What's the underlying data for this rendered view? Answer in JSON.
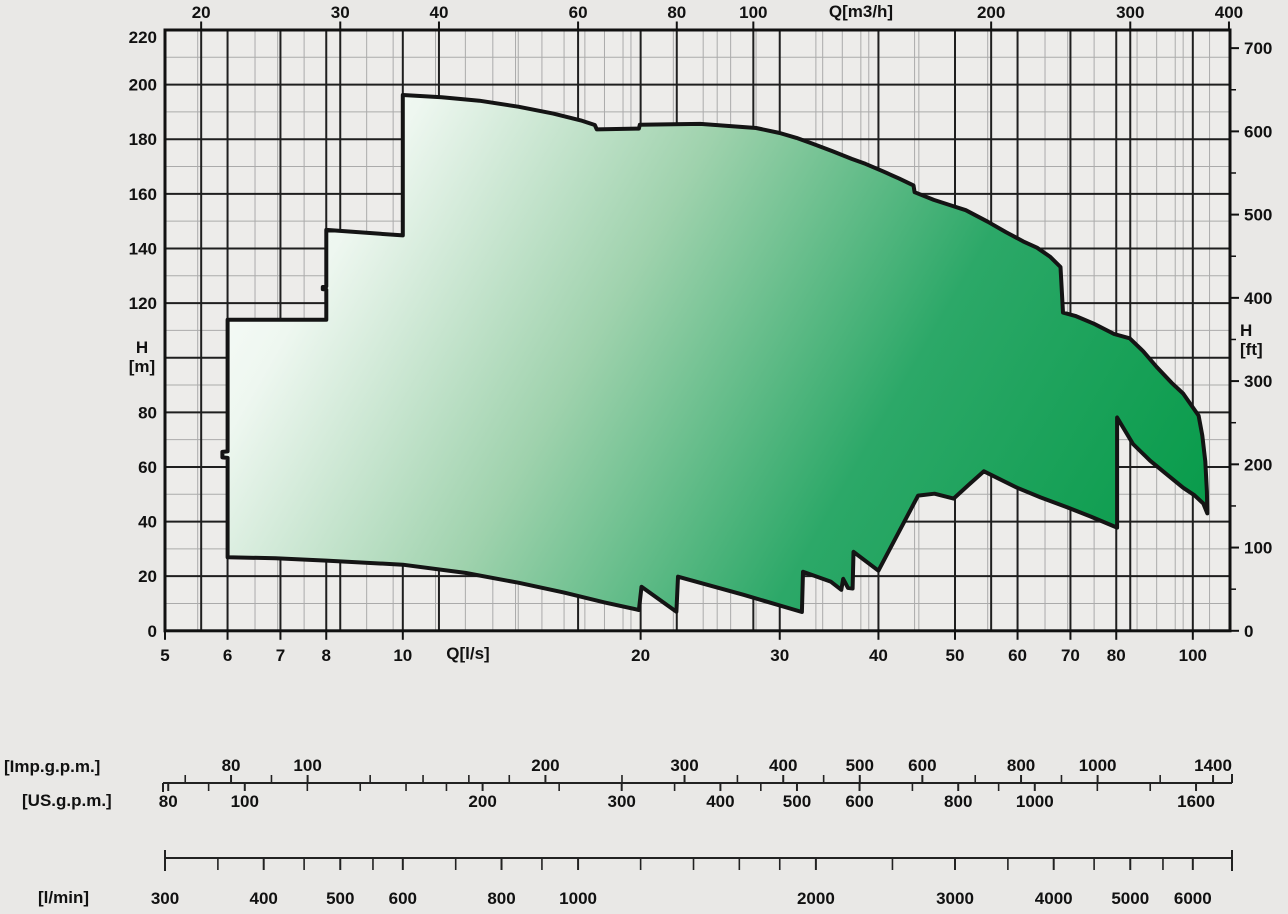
{
  "chart_data": {
    "type": "area",
    "x_scale": "log",
    "x_range_ls": [
      5,
      111.11
    ],
    "y_range_m": [
      0,
      220
    ],
    "top_axis": {
      "label": "Q[m3/h]",
      "ticks": [
        20,
        30,
        40,
        60,
        80,
        100,
        200,
        300,
        400
      ],
      "ls_per_unit": 0.27778
    },
    "bottom_axis": {
      "label": "Q[l/s]",
      "ticks": [
        5,
        6,
        7,
        8,
        10,
        20,
        30,
        40,
        50,
        60,
        70,
        80,
        100
      ],
      "ls_per_unit": 1
    },
    "left_axis": {
      "label": "H",
      "unit": "[m]",
      "ticks": [
        0,
        20,
        40,
        60,
        80,
        120,
        140,
        160,
        180,
        200,
        220
      ]
    },
    "right_axis": {
      "label": "H",
      "unit": "[ft]",
      "ticks": [
        0,
        100,
        200,
        300,
        400,
        500,
        600,
        700
      ],
      "minor_ticks": [
        50,
        150,
        250,
        350,
        450,
        550,
        650
      ],
      "m_per_ft": 0.3048
    },
    "grid": {
      "v_major_ls": [
        6,
        7,
        8,
        10,
        20,
        30,
        40,
        50,
        60,
        70,
        80,
        100,
        5.556,
        8.333,
        11.111,
        16.667,
        22.222,
        27.778,
        55.556,
        83.333
      ],
      "v_minor_ls": [
        5.5,
        6.5,
        7.5,
        9,
        11,
        12,
        13,
        14,
        15,
        16,
        17,
        18,
        19,
        22,
        24,
        26,
        28,
        34,
        36,
        38,
        45,
        55,
        65,
        75,
        85,
        90,
        95,
        105,
        6.944,
        9.722,
        13.889,
        19.444,
        25,
        33.333,
        38.889,
        44.444,
        69.444,
        97.222
      ],
      "h_major_m": [
        20,
        40,
        60,
        80,
        100,
        120,
        140,
        160,
        180,
        200
      ],
      "h_minor_m": [
        10,
        30,
        50,
        70,
        90,
        110,
        130,
        150,
        170,
        190,
        210
      ]
    },
    "rulers": [
      {
        "name": "imp-gpm",
        "bracket_label": "[Imp.g.p.m.]",
        "line": "A",
        "tick_side": "up",
        "label_side": "above",
        "ls_per_unit": 0.0757682,
        "labeled_ticks": [
          80,
          100,
          200,
          300,
          400,
          500,
          600,
          800,
          1000,
          1400
        ],
        "minor_ticks": [
          70,
          90,
          120,
          140,
          160,
          180,
          250,
          350,
          450,
          700,
          900,
          1200
        ]
      },
      {
        "name": "us-gpm",
        "bracket_label": "[US.g.p.m.]",
        "line": "A",
        "tick_side": "down",
        "label_side": "below",
        "ls_per_unit": 0.0630902,
        "labeled_ticks": [
          80,
          100,
          200,
          300,
          400,
          500,
          600,
          800,
          1000,
          1600
        ],
        "minor_ticks": [
          90,
          120,
          140,
          160,
          180,
          250,
          350,
          450,
          700,
          900,
          1200,
          1400
        ]
      },
      {
        "name": "l-min",
        "bracket_label": "[l/min]",
        "line": "B",
        "tick_side": "down",
        "label_side": "below",
        "ls_per_unit": 0.0166667,
        "labeled_ticks": [
          300,
          400,
          500,
          600,
          800,
          1000,
          2000,
          3000,
          4000,
          5000,
          6000
        ],
        "minor_ticks": [
          350,
          450,
          550,
          700,
          900,
          1200,
          1400,
          1600,
          1800,
          2500,
          3500,
          4500,
          5500
        ]
      }
    ],
    "envelope_points_q_h": [
      [
        6.0,
        26.9
      ],
      [
        6.0,
        63.3
      ],
      [
        5.91,
        63.5
      ],
      [
        5.91,
        65.5
      ],
      [
        6.0,
        65.7
      ],
      [
        6.0,
        113.9
      ],
      [
        8.0,
        113.9
      ],
      [
        8.0,
        124.9
      ],
      [
        7.92,
        125.1
      ],
      [
        7.92,
        125.9
      ],
      [
        8.0,
        126.1
      ],
      [
        8.0,
        146.8
      ],
      [
        10.0,
        144.8
      ],
      [
        10.0,
        196.2
      ],
      [
        11.2,
        195.4
      ],
      [
        12.5,
        194.1
      ],
      [
        14.0,
        191.9
      ],
      [
        15.5,
        189.4
      ],
      [
        16.8,
        186.9
      ],
      [
        17.5,
        185.2
      ],
      [
        17.6,
        183.6
      ],
      [
        19.9,
        183.9
      ],
      [
        19.95,
        185.3
      ],
      [
        22.0,
        185.5
      ],
      [
        23.8,
        185.6
      ],
      [
        26.0,
        184.8
      ],
      [
        28.0,
        184.1
      ],
      [
        30.0,
        182.3
      ],
      [
        31.5,
        180.5
      ],
      [
        33.0,
        178.4
      ],
      [
        35.0,
        175.6
      ],
      [
        37.0,
        172.8
      ],
      [
        38.5,
        171.0
      ],
      [
        40.5,
        168.3
      ],
      [
        42.5,
        165.6
      ],
      [
        44.3,
        163.1
      ],
      [
        44.45,
        160.6
      ],
      [
        47.0,
        157.8
      ],
      [
        49.5,
        155.7
      ],
      [
        51.6,
        154.0
      ],
      [
        55.0,
        149.8
      ],
      [
        58.0,
        146.0
      ],
      [
        61.0,
        142.6
      ],
      [
        63.5,
        140.3
      ],
      [
        66.0,
        136.9
      ],
      [
        68.0,
        133.2
      ],
      [
        68.5,
        116.5
      ],
      [
        71.0,
        115.3
      ],
      [
        75.0,
        112.4
      ],
      [
        79.5,
        108.7
      ],
      [
        83.2,
        107.1
      ],
      [
        86.5,
        102.4
      ],
      [
        90.0,
        96.6
      ],
      [
        94.0,
        90.8
      ],
      [
        97.2,
        86.9
      ],
      [
        101.7,
        78.8
      ],
      [
        102.8,
        71.5
      ],
      [
        103.7,
        62.0
      ],
      [
        104.2,
        51.0
      ],
      [
        104.3,
        43.0
      ],
      [
        103.1,
        46.6
      ],
      [
        100.5,
        49.6
      ],
      [
        97.2,
        52.4
      ],
      [
        92.5,
        57.5
      ],
      [
        88.3,
        62.3
      ],
      [
        84.0,
        68.4
      ],
      [
        80.2,
        78.1
      ],
      [
        80.2,
        37.8
      ],
      [
        74.3,
        41.8
      ],
      [
        69.5,
        45.1
      ],
      [
        64.2,
        48.8
      ],
      [
        59.9,
        52.4
      ],
      [
        54.4,
        58.4
      ],
      [
        52.0,
        53.4
      ],
      [
        49.8,
        48.4
      ],
      [
        47.1,
        50.2
      ],
      [
        44.9,
        49.5
      ],
      [
        40.0,
        22.0
      ],
      [
        37.2,
        28.9
      ],
      [
        37.1,
        15.5
      ],
      [
        36.6,
        15.7
      ],
      [
        36.1,
        19.0
      ],
      [
        35.9,
        15.0
      ],
      [
        34.8,
        18.0
      ],
      [
        32.1,
        21.6
      ],
      [
        32.0,
        6.9
      ],
      [
        27.0,
        13.2
      ],
      [
        22.3,
        19.8
      ],
      [
        22.2,
        7.0
      ],
      [
        20.05,
        16.1
      ],
      [
        19.9,
        7.6
      ],
      [
        18.0,
        10.4
      ],
      [
        16.0,
        14.0
      ],
      [
        14.0,
        17.6
      ],
      [
        12.0,
        21.2
      ],
      [
        10.0,
        24.2
      ],
      [
        8.0,
        25.7
      ],
      [
        6.9,
        26.6
      ]
    ],
    "envelope_gradient": [
      "#ffffff",
      "#eef7f0",
      "#9fd2ad",
      "#2ca868",
      "#0a9c4c"
    ],
    "colors": {
      "outline": "#141414",
      "grid_major": "#1f1f1f",
      "grid_minor": "#ababab",
      "plot_bg": "#edecea",
      "page_bg": "#e9e8e6",
      "text": "#111111"
    }
  }
}
